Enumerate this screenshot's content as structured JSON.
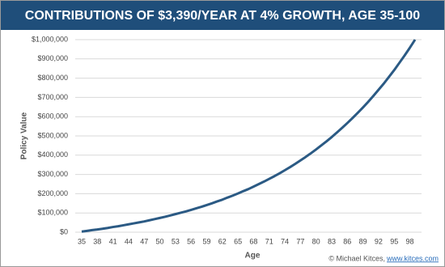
{
  "chart_data": {
    "type": "line",
    "title": "CONTRIBUTIONS OF $3,390/YEAR AT 4% GROWTH, AGE 35-100",
    "x_label": "Age",
    "y_label": "Policy Value",
    "x": [
      35,
      36,
      37,
      38,
      39,
      40,
      41,
      42,
      43,
      44,
      45,
      46,
      47,
      48,
      49,
      50,
      51,
      52,
      53,
      54,
      55,
      56,
      57,
      58,
      59,
      60,
      61,
      62,
      63,
      64,
      65,
      66,
      67,
      68,
      69,
      70,
      71,
      72,
      73,
      74,
      75,
      76,
      77,
      78,
      79,
      80,
      81,
      82,
      83,
      84,
      85,
      86,
      87,
      88,
      89,
      90,
      91,
      92,
      93,
      94,
      95,
      96,
      97,
      98,
      99
    ],
    "series": [
      {
        "color": "#2b5a84",
        "values": [
          3000,
          7000,
          11000,
          14000,
          18000,
          22000,
          27000,
          31000,
          36000,
          41000,
          46000,
          51000,
          56000,
          62000,
          68000,
          74000,
          80000,
          87000,
          94000,
          101000,
          108000,
          116000,
          124000,
          132000,
          141000,
          150000,
          160000,
          169000,
          180000,
          190000,
          201000,
          213000,
          224000,
          237000,
          250000,
          263000,
          277000,
          291000,
          306000,
          322000,
          338000,
          355000,
          373000,
          391000,
          410000,
          430000,
          451000,
          472000,
          494000,
          518000,
          542000,
          567000,
          593000,
          620000,
          648000,
          677000,
          708000,
          740000,
          772000,
          807000,
          842000,
          880000,
          918000,
          958000,
          1000000
        ]
      }
    ],
    "xlim": [
      35,
      99
    ],
    "xticks": [
      35,
      38,
      41,
      44,
      47,
      50,
      53,
      56,
      59,
      62,
      65,
      68,
      71,
      74,
      77,
      80,
      83,
      86,
      89,
      92,
      95,
      98
    ],
    "ylim": [
      0,
      1000000
    ],
    "yticks": [
      {
        "value": 0,
        "label": "$0"
      },
      {
        "value": 100000,
        "label": "$100,000"
      },
      {
        "value": 200000,
        "label": "$200,000"
      },
      {
        "value": 300000,
        "label": "$300,000"
      },
      {
        "value": 400000,
        "label": "$400,000"
      },
      {
        "value": 500000,
        "label": "$500,000"
      },
      {
        "value": 600000,
        "label": "$600,000"
      },
      {
        "value": 700000,
        "label": "$700,000"
      },
      {
        "value": 800000,
        "label": "$800,000"
      },
      {
        "value": 900000,
        "label": "$900,000"
      },
      {
        "value": 1000000,
        "label": "$1,000,000"
      }
    ],
    "grid": true,
    "credit": {
      "text": "© Michael Kitces,",
      "link": "www.kitces.com"
    }
  }
}
